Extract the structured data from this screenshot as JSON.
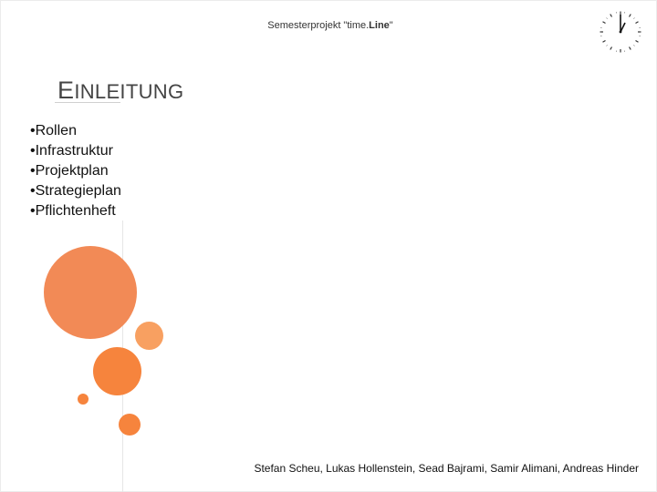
{
  "header": {
    "prefix": "Semesterprojekt \"time.",
    "brand": "Line",
    "suffix": "\""
  },
  "title": {
    "first_letter": "E",
    "rest": "INLEITUNG"
  },
  "bullets": [
    "•Rollen",
    "•Infrastruktur",
    "•Projektplan",
    "•Strategieplan",
    "•Pflichtenheft"
  ],
  "footer": {
    "authors": "Stefan Scheu, Lukas Hollenstein, Sead Bajrami, Samir Alimani, Andreas Hinder"
  },
  "icons": {
    "clock": "clock-icon"
  },
  "colors": {
    "accent": "#f48a53"
  }
}
